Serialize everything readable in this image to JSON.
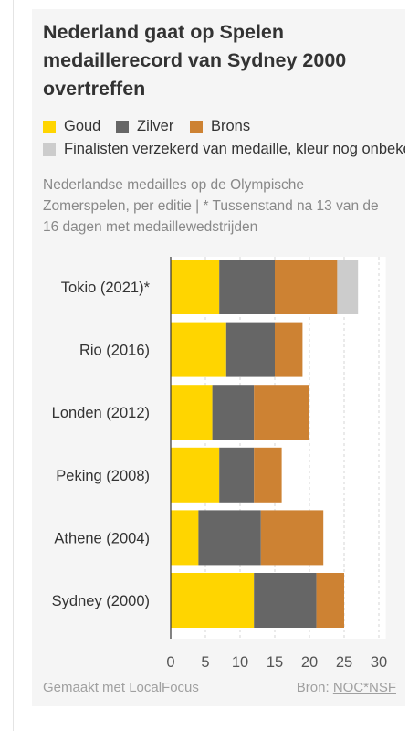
{
  "title": "Nederland gaat op Spelen medaillerecord van Sydney 2000 overtreffen",
  "subtitle": "Nederlandse medailles op de Olympische Zomerspelen, per editie | * Tussenstand na 13 van de 16 dagen met medaillewedstrijden",
  "legend": [
    {
      "label": "Goud",
      "color": "#FFD500"
    },
    {
      "label": "Zilver",
      "color": "#666666"
    },
    {
      "label": "Brons",
      "color": "#CD8233"
    },
    {
      "label": "Finalisten verzekerd van medaille, kleur nog onbekend",
      "color": "#CCCCCC"
    }
  ],
  "footer": {
    "made_with": "Gemaakt met LocalFocus",
    "source_label": "Bron:",
    "source_name": "NOC*NSF"
  },
  "chart_data": {
    "type": "bar",
    "orientation": "horizontal",
    "stacked": true,
    "categories": [
      "Tokio (2021)*",
      "Rio (2016)",
      "Londen (2012)",
      "Peking (2008)",
      "Athene (2004)",
      "Sydney (2000)"
    ],
    "series": [
      {
        "name": "Goud",
        "color": "#FFD500",
        "values": [
          7,
          8,
          6,
          7,
          4,
          12
        ]
      },
      {
        "name": "Zilver",
        "color": "#666666",
        "values": [
          8,
          7,
          6,
          5,
          9,
          9
        ]
      },
      {
        "name": "Brons",
        "color": "#CD8233",
        "values": [
          9,
          4,
          8,
          4,
          9,
          4
        ]
      },
      {
        "name": "Finalisten verzekerd van medaille, kleur nog onbekend",
        "color": "#CCCCCC",
        "values": [
          3,
          0,
          0,
          0,
          0,
          0
        ]
      }
    ],
    "xlim": [
      0,
      31
    ],
    "xticks": [
      0,
      5,
      10,
      15,
      20,
      25,
      30
    ],
    "grid": true,
    "legend_position": "top"
  }
}
